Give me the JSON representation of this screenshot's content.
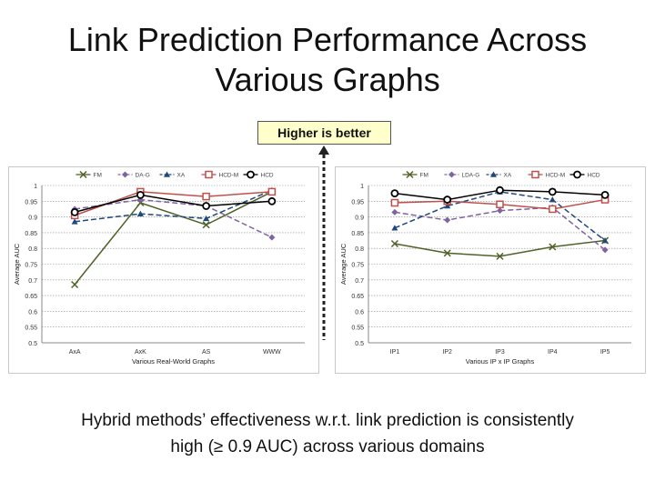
{
  "slide": {
    "title_line1": "Link Prediction Performance Across",
    "title_line2": "Various Graphs",
    "callout": "Higher is better",
    "caption_line1": "Hybrid methods’ effectiveness w.r.t. link prediction is consistently",
    "caption_line2": "high (≥ 0.9 AUC) across various domains"
  },
  "chart_data": [
    {
      "type": "line",
      "xlabel": "Various Real-World Graphs",
      "ylabel": "Average AUC",
      "ylim": [
        0.5,
        1.0
      ],
      "yticks": [
        "0.5",
        "0.55",
        "0.6",
        "0.65",
        "0.7",
        "0.75",
        "0.8",
        "0.85",
        "0.9",
        "0.95",
        "1"
      ],
      "grid": true,
      "legend_position": "top",
      "categories": [
        "AxA",
        "AxK",
        "AS",
        "WWW"
      ],
      "series": [
        {
          "name": "FM",
          "color": "#4f6228",
          "dash": "solid",
          "marker": "x",
          "values": [
            0.685,
            0.945,
            0.875,
            0.98
          ]
        },
        {
          "name": "DA-G",
          "color": "#8064a2",
          "dash": "dash",
          "marker": "diamond",
          "values": [
            0.925,
            0.955,
            0.935,
            0.835
          ]
        },
        {
          "name": "XA",
          "color": "#1f497d",
          "dash": "dash",
          "marker": "triangle",
          "values": [
            0.885,
            0.91,
            0.895,
            0.985
          ]
        },
        {
          "name": "HCD-M",
          "color": "#c0504d",
          "dash": "solid",
          "marker": "square",
          "values": [
            0.905,
            0.98,
            0.965,
            0.98
          ]
        },
        {
          "name": "HCD",
          "color": "#000000",
          "dash": "solid",
          "marker": "circle",
          "values": [
            0.915,
            0.97,
            0.935,
            0.95
          ]
        }
      ]
    },
    {
      "type": "line",
      "xlabel": "Various IP x IP Graphs",
      "ylabel": "Average AUC",
      "ylim": [
        0.5,
        1.0
      ],
      "yticks": [
        "0.5",
        "0.55",
        "0.6",
        "0.65",
        "0.7",
        "0.75",
        "0.8",
        "0.85",
        "0.9",
        "0.95",
        "1"
      ],
      "grid": true,
      "legend_position": "top",
      "categories": [
        "IP1",
        "IP2",
        "IP3",
        "IP4",
        "IP5"
      ],
      "series": [
        {
          "name": "FM",
          "color": "#4f6228",
          "dash": "solid",
          "marker": "x",
          "values": [
            0.815,
            0.785,
            0.775,
            0.805,
            0.825
          ]
        },
        {
          "name": "LDA-G",
          "color": "#8064a2",
          "dash": "dash",
          "marker": "diamond",
          "values": [
            0.915,
            0.89,
            0.92,
            0.93,
            0.795
          ]
        },
        {
          "name": "XA",
          "color": "#1f497d",
          "dash": "dash",
          "marker": "triangle",
          "values": [
            0.865,
            0.935,
            0.98,
            0.955,
            0.825
          ]
        },
        {
          "name": "HCD-M",
          "color": "#c0504d",
          "dash": "solid",
          "marker": "square",
          "values": [
            0.945,
            0.95,
            0.94,
            0.925,
            0.955
          ]
        },
        {
          "name": "HCD",
          "color": "#000000",
          "dash": "solid",
          "marker": "circle",
          "values": [
            0.975,
            0.955,
            0.985,
            0.98,
            0.97
          ]
        }
      ]
    }
  ]
}
